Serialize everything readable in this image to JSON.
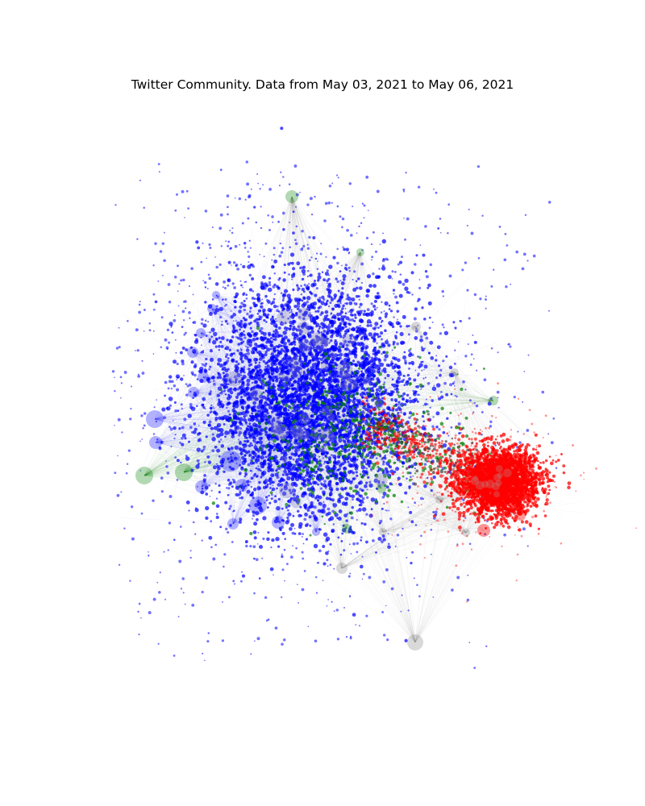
{
  "title": "Twitter Community. Data from May 03, 2021 to May 06, 2021",
  "network": {
    "node_colors": {
      "community_a": "#0000ff",
      "community_b": "#ff0000",
      "community_c": "#008000",
      "unassigned": "#808080"
    },
    "edge_color": "#808080",
    "hub_fill_opacity": 0.3
  }
}
